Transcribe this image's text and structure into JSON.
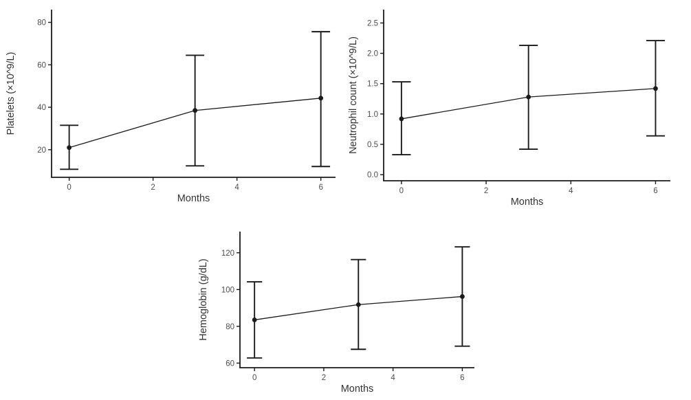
{
  "page": {
    "background": "#ffffff",
    "description_labels": {
      "x_axis_title": "Months"
    }
  },
  "chart_data": [
    {
      "name": "platelets",
      "type": "line",
      "title": "",
      "xlabel": "Months",
      "ylabel": "Platelets (×10^9/L)",
      "x": [
        0,
        3,
        6
      ],
      "series": [
        {
          "name": "mean",
          "values": [
            21,
            38.5,
            44.3
          ],
          "error_upper": [
            31.5,
            64.5,
            75.6
          ],
          "error_lower": [
            10.8,
            12.4,
            12.1
          ]
        }
      ],
      "xticks": {
        "values": [
          0,
          2,
          4,
          6
        ],
        "labels": [
          "0",
          "2",
          "4",
          "6"
        ]
      },
      "yticks": {
        "values": [
          20,
          40,
          60,
          80
        ],
        "labels": [
          "20",
          "40",
          "60",
          "80"
        ]
      },
      "xlim": [
        -0.42,
        6.35
      ],
      "ylim": [
        7,
        86
      ],
      "grid": false,
      "legend": "none",
      "error_cap_halfwidth_x": 0.22,
      "colors": {
        "line": "#1a1a1a",
        "point": "#1a1a1a",
        "error_bar": "#1a1a1a",
        "axis": "#1a1a1a",
        "tick_label": "#4d4d4d",
        "axis_title": "#333333"
      }
    },
    {
      "name": "neutrophil-count",
      "type": "line",
      "title": "",
      "xlabel": "Months",
      "ylabel": "Neutrophil count (×10^9/L)",
      "x": [
        0,
        3,
        6
      ],
      "series": [
        {
          "name": "mean",
          "values": [
            0.92,
            1.28,
            1.42
          ],
          "error_upper": [
            1.53,
            2.13,
            2.21
          ],
          "error_lower": [
            0.33,
            0.42,
            0.64
          ]
        }
      ],
      "xticks": {
        "values": [
          0,
          2,
          4,
          6
        ],
        "labels": [
          "0",
          "2",
          "4",
          "6"
        ]
      },
      "yticks": {
        "values": [
          0,
          0.5,
          1,
          1.5,
          2,
          2.5
        ],
        "labels": [
          "0.0",
          "0.5",
          "1.0",
          "1.5",
          "2.0",
          "2.5"
        ]
      },
      "xlim": [
        -0.42,
        6.35
      ],
      "ylim": [
        -0.1,
        2.72
      ],
      "grid": false,
      "legend": "none",
      "error_cap_halfwidth_x": 0.22,
      "colors": {
        "line": "#1a1a1a",
        "point": "#1a1a1a",
        "error_bar": "#1a1a1a",
        "axis": "#1a1a1a",
        "tick_label": "#4d4d4d",
        "axis_title": "#333333"
      }
    },
    {
      "name": "hemoglobin",
      "type": "line",
      "title": "",
      "xlabel": "Months",
      "ylabel": "Hemoglobin (g/dL)",
      "x": [
        0,
        3,
        6
      ],
      "series": [
        {
          "name": "mean",
          "values": [
            83.5,
            91.8,
            96.2
          ],
          "error_upper": [
            104.2,
            116.3,
            123.2
          ],
          "error_lower": [
            62.8,
            67.5,
            69.2
          ]
        }
      ],
      "xticks": {
        "values": [
          0,
          2,
          4,
          6
        ],
        "labels": [
          "0",
          "2",
          "4",
          "6"
        ]
      },
      "yticks": {
        "values": [
          60,
          80,
          100,
          120
        ],
        "labels": [
          "60",
          "80",
          "100",
          "120"
        ]
      },
      "xlim": [
        -0.42,
        6.35
      ],
      "ylim": [
        57.5,
        131.5
      ],
      "grid": false,
      "legend": "none",
      "error_cap_halfwidth_x": 0.22,
      "colors": {
        "line": "#1a1a1a",
        "point": "#1a1a1a",
        "error_bar": "#1a1a1a",
        "axis": "#1a1a1a",
        "tick_label": "#4d4d4d",
        "axis_title": "#333333"
      }
    }
  ]
}
